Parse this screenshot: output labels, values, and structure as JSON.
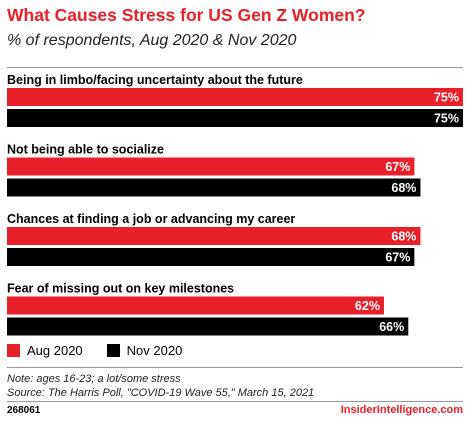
{
  "title": "What Causes Stress for US Gen Z Women?",
  "subtitle": "% of respondents, Aug 2020 & Nov 2020",
  "note_line1": "Note: ages 16-23; a lot/some stress",
  "note_line2": "Source: The Harris Poll, \"COVID-19 Wave 55,\" March 15, 2021",
  "chart_id": "268061",
  "brand": "InsiderIntelligence.com",
  "colors": {
    "aug": "#e8202a",
    "nov": "#000000"
  },
  "chart_data": {
    "type": "bar",
    "orientation": "horizontal",
    "unit": "%",
    "xlim": [
      0,
      75
    ],
    "categories": [
      "Being in limbo/facing uncertainty about the future",
      "Not being able to socialize",
      "Chances at finding a job or advancing my career",
      "Fear of missing out on key milestones"
    ],
    "series": [
      {
        "name": "Aug 2020",
        "color": "#e8202a",
        "values": [
          75,
          67,
          68,
          62
        ]
      },
      {
        "name": "Nov 2020",
        "color": "#000000",
        "values": [
          75,
          68,
          67,
          66
        ]
      }
    ],
    "legend": "bottom-left",
    "grid": false
  }
}
